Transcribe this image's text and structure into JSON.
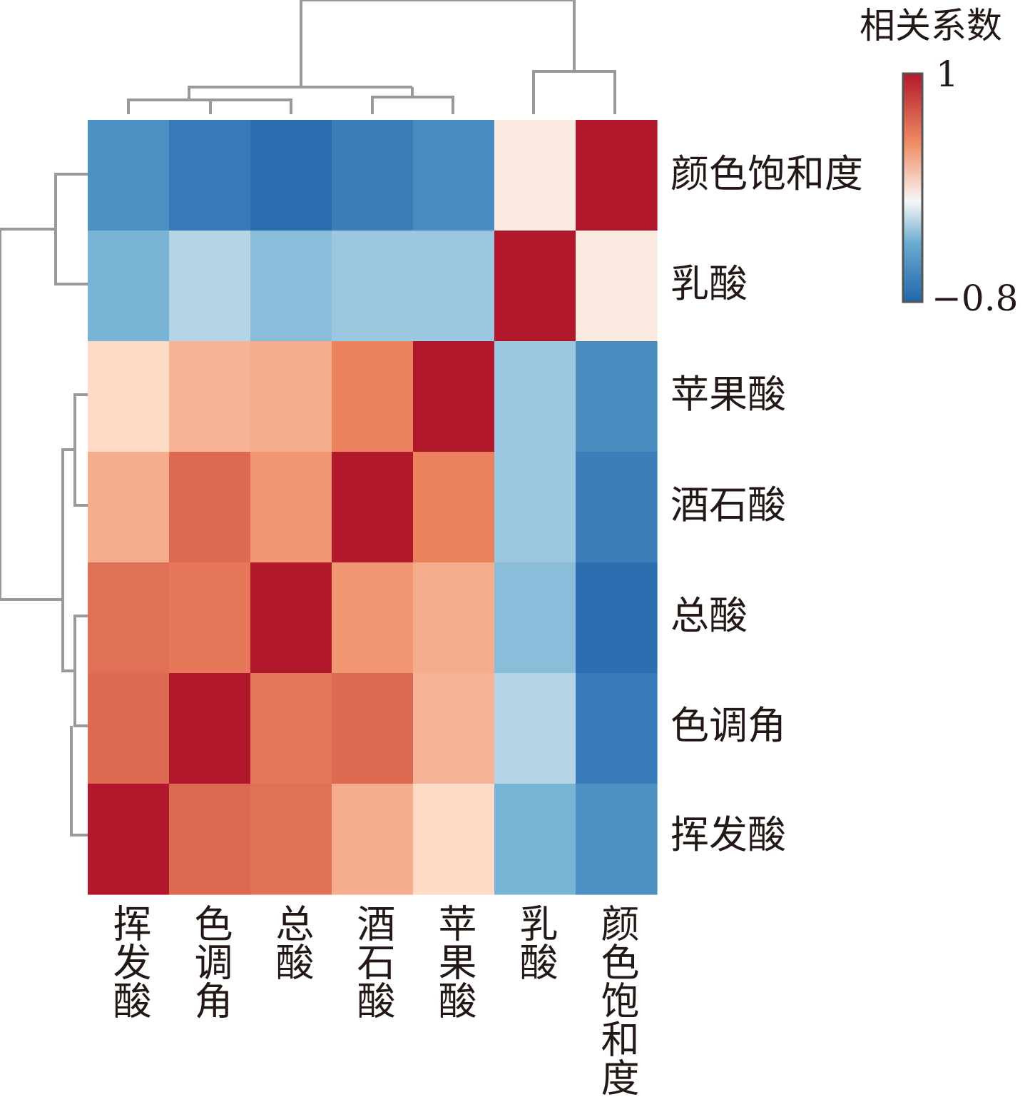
{
  "chart_data": {
    "type": "heatmap",
    "title": "",
    "rows": [
      "颜色饱和度",
      "乳酸",
      "苹果酸",
      "酒石酸",
      "总酸",
      "色调角",
      "挥发酸"
    ],
    "columns": [
      "挥发酸",
      "色调角",
      "总酸",
      "酒石酸",
      "苹果酸",
      "乳酸",
      "颜色饱和度"
    ],
    "values": [
      [
        -0.55,
        -0.68,
        -0.75,
        -0.66,
        -0.58,
        0.12,
        1.0
      ],
      [
        -0.35,
        -0.18,
        -0.3,
        -0.25,
        -0.25,
        1.0,
        0.12
      ],
      [
        0.25,
        0.4,
        0.42,
        0.58,
        1.0,
        -0.25,
        -0.58
      ],
      [
        0.42,
        0.68,
        0.5,
        1.0,
        0.58,
        -0.25,
        -0.66
      ],
      [
        0.65,
        0.62,
        1.0,
        0.5,
        0.42,
        -0.3,
        -0.75
      ],
      [
        0.68,
        1.0,
        0.62,
        0.68,
        0.4,
        -0.18,
        -0.68
      ],
      [
        1.0,
        0.68,
        0.65,
        0.42,
        0.25,
        -0.35,
        -0.55
      ]
    ],
    "color_scale": {
      "min": -0.8,
      "max": 1,
      "low_color": "#2166ac",
      "mid_color": "#f7f7f7",
      "high_color": "#b2182b"
    },
    "legend": {
      "title": "相关系数",
      "max_label": "1",
      "min_label": "−0.8",
      "placement": "top-right"
    },
    "dendrograms": {
      "rows": true,
      "columns": true,
      "line_color": "#999999"
    }
  }
}
